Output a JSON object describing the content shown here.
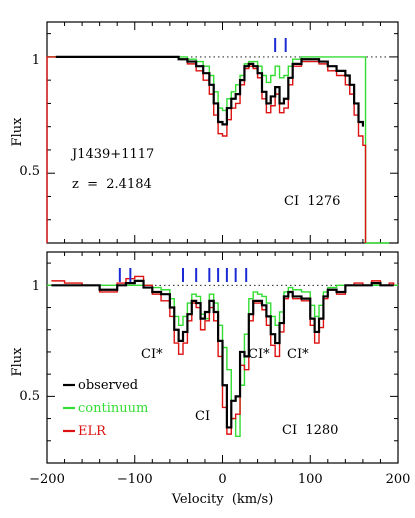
{
  "chart_data": [
    {
      "type": "line",
      "panel": "top",
      "ylabel": "Flux",
      "xlim": [
        -200,
        200
      ],
      "ylim": [
        0.2,
        1.15
      ],
      "y_ticks": [
        0.5,
        1
      ],
      "y_tick_labels": [
        "0.5",
        "1"
      ],
      "continuum_level": 1,
      "annotations": [
        "J1439+1117",
        "z  =  2.4184",
        "CI  1276"
      ],
      "component_ticks": [
        60,
        72
      ],
      "series": [
        {
          "name": "observed",
          "color": "#000000",
          "x": [
            -190,
            -170,
            -150,
            -130,
            -110,
            -90,
            -70,
            -50,
            -40,
            -30,
            -22,
            -15,
            -10,
            -5,
            0,
            5,
            10,
            15,
            20,
            25,
            30,
            35,
            40,
            45,
            50,
            55,
            60,
            65,
            70,
            75,
            80,
            90,
            100,
            110,
            120,
            130,
            140,
            145,
            150,
            155,
            160
          ],
          "y": [
            1.0,
            1.0,
            1.0,
            1.0,
            1.0,
            1.0,
            1.0,
            0.99,
            0.98,
            0.96,
            0.93,
            0.88,
            0.8,
            0.72,
            0.71,
            0.78,
            0.82,
            0.84,
            0.9,
            0.96,
            0.97,
            0.96,
            0.93,
            0.85,
            0.8,
            0.83,
            0.87,
            0.8,
            0.82,
            0.91,
            0.97,
            0.99,
            0.99,
            0.98,
            0.96,
            0.94,
            0.92,
            0.88,
            0.8,
            0.72,
            0.7
          ]
        },
        {
          "name": "continuum",
          "color": "#33dd33",
          "x": [
            -200,
            -190,
            -170,
            -150,
            -130,
            -110,
            -90,
            -70,
            -50,
            -40,
            -30,
            -22,
            -15,
            -10,
            -5,
            0,
            5,
            10,
            15,
            20,
            25,
            30,
            35,
            40,
            45,
            50,
            55,
            60,
            65,
            70,
            75,
            80,
            90,
            100,
            110,
            120,
            130,
            140,
            145,
            150,
            155,
            160,
            163,
            163,
            190
          ],
          "y": [
            1.0,
            1.0,
            1.0,
            1.0,
            1.0,
            1.0,
            1.0,
            1.0,
            1.0,
            0.99,
            0.98,
            0.96,
            0.92,
            0.85,
            0.78,
            0.77,
            0.82,
            0.85,
            0.88,
            0.92,
            0.97,
            0.98,
            0.98,
            0.96,
            0.92,
            0.89,
            0.92,
            0.96,
            0.91,
            0.92,
            0.96,
            0.99,
            1.0,
            1.0,
            1.0,
            1.0,
            1.0,
            1.0,
            1.0,
            1.0,
            1.0,
            1.0,
            1.0,
            0.2,
            0.2
          ]
        },
        {
          "name": "ELR",
          "color": "#dd1111",
          "x": [
            -200,
            -200,
            -190,
            -170,
            -150,
            -130,
            -110,
            -90,
            -70,
            -50,
            -40,
            -30,
            -22,
            -15,
            -10,
            -5,
            0,
            5,
            10,
            15,
            20,
            25,
            30,
            35,
            40,
            45,
            50,
            55,
            60,
            65,
            70,
            75,
            80,
            90,
            100,
            110,
            120,
            130,
            140,
            145,
            150,
            155,
            160,
            163
          ],
          "y": [
            0.2,
            1.0,
            1.0,
            1.0,
            1.0,
            1.0,
            1.0,
            1.0,
            1.0,
            0.99,
            0.97,
            0.94,
            0.9,
            0.84,
            0.75,
            0.67,
            0.66,
            0.73,
            0.78,
            0.8,
            0.88,
            0.95,
            0.96,
            0.95,
            0.91,
            0.82,
            0.76,
            0.79,
            0.84,
            0.76,
            0.78,
            0.88,
            0.96,
            0.98,
            0.98,
            0.97,
            0.94,
            0.92,
            0.88,
            0.84,
            0.75,
            0.66,
            0.62,
            0.2
          ]
        }
      ]
    },
    {
      "type": "line",
      "panel": "bottom",
      "xlabel": "Velocity  (km/s)",
      "ylabel": "Flux",
      "xlim": [
        -200,
        200
      ],
      "ylim": [
        0.2,
        1.15
      ],
      "x_ticks": [
        -200,
        -100,
        0,
        100,
        200
      ],
      "x_tick_labels": [
        "−200",
        "−100",
        "0",
        "100",
        "200"
      ],
      "y_ticks": [
        0.5,
        1
      ],
      "y_tick_labels": [
        "0.5",
        "1"
      ],
      "continuum_level": 1,
      "annotations": [
        "CI*",
        "CI*",
        "CI*",
        "CI",
        "CI  1280"
      ],
      "component_ticks": [
        -117,
        -105,
        -45,
        -30,
        -15,
        -5,
        5,
        15,
        27
      ],
      "legend": {
        "position": "bottom-left",
        "entries": [
          "observed",
          "continuum",
          "ELR"
        ]
      },
      "series": [
        {
          "name": "observed",
          "color": "#000000",
          "x": [
            -195,
            -180,
            -160,
            -140,
            -120,
            -110,
            -100,
            -90,
            -80,
            -70,
            -60,
            -55,
            -50,
            -45,
            -40,
            -35,
            -30,
            -25,
            -20,
            -15,
            -10,
            -5,
            0,
            5,
            10,
            15,
            20,
            25,
            30,
            35,
            40,
            45,
            50,
            55,
            60,
            65,
            70,
            75,
            80,
            90,
            100,
            105,
            110,
            115,
            120,
            130,
            140,
            150,
            160,
            170,
            180,
            190,
            195
          ],
          "y": [
            1.0,
            1.0,
            1.0,
            0.98,
            1.0,
            1.01,
            1.02,
            0.99,
            0.97,
            0.96,
            0.9,
            0.8,
            0.75,
            0.79,
            0.87,
            0.93,
            0.92,
            0.85,
            0.88,
            0.93,
            0.88,
            0.75,
            0.55,
            0.36,
            0.48,
            0.5,
            0.7,
            0.68,
            0.87,
            0.93,
            0.93,
            0.91,
            0.86,
            0.78,
            0.74,
            0.83,
            0.95,
            0.97,
            0.95,
            0.94,
            0.85,
            0.79,
            0.85,
            0.95,
            0.98,
            0.97,
            1.0,
            1.0,
            1.0,
            1.01,
            1.0,
            1.0,
            1.0
          ]
        },
        {
          "name": "continuum",
          "color": "#33dd33",
          "x": [
            -200,
            -180,
            -160,
            -140,
            -120,
            -110,
            -100,
            -90,
            -80,
            -70,
            -60,
            -55,
            -50,
            -45,
            -40,
            -35,
            -30,
            -25,
            -20,
            -15,
            -10,
            -5,
            0,
            5,
            10,
            15,
            20,
            25,
            30,
            35,
            40,
            45,
            50,
            55,
            60,
            65,
            70,
            75,
            80,
            90,
            100,
            105,
            110,
            115,
            120,
            130,
            140,
            150,
            160,
            170,
            180,
            190,
            200
          ],
          "y": [
            1.0,
            1.0,
            1.0,
            1.0,
            1.0,
            1.0,
            1.0,
            1.0,
            0.99,
            0.98,
            0.94,
            0.86,
            0.82,
            0.86,
            0.92,
            0.96,
            0.95,
            0.87,
            0.85,
            0.96,
            0.92,
            0.82,
            0.72,
            0.62,
            0.4,
            0.32,
            0.55,
            0.78,
            0.94,
            0.97,
            0.96,
            0.95,
            0.92,
            0.86,
            0.82,
            0.88,
            0.97,
            0.99,
            0.98,
            0.97,
            0.91,
            0.86,
            0.91,
            0.97,
            0.99,
            1.0,
            1.0,
            1.0,
            1.0,
            1.0,
            1.0,
            1.0,
            1.0
          ]
        },
        {
          "name": "ELR",
          "color": "#dd1111",
          "x": [
            -195,
            -180,
            -160,
            -140,
            -120,
            -110,
            -100,
            -90,
            -80,
            -70,
            -60,
            -55,
            -50,
            -45,
            -40,
            -35,
            -30,
            -25,
            -20,
            -15,
            -10,
            -5,
            0,
            5,
            10,
            15,
            20,
            25,
            30,
            35,
            40,
            45,
            50,
            55,
            60,
            65,
            70,
            75,
            80,
            90,
            100,
            105,
            110,
            115,
            120,
            130,
            140,
            150,
            160,
            170,
            180,
            190,
            195
          ],
          "y": [
            1.02,
            1.01,
            1.0,
            0.97,
            1.01,
            1.03,
            1.04,
            1.0,
            0.96,
            0.93,
            0.86,
            0.74,
            0.69,
            0.74,
            0.84,
            0.92,
            0.9,
            0.8,
            0.84,
            0.9,
            0.84,
            0.68,
            0.45,
            0.33,
            0.4,
            0.42,
            0.64,
            0.62,
            0.84,
            0.92,
            0.92,
            0.89,
            0.82,
            0.73,
            0.68,
            0.79,
            0.94,
            0.97,
            0.94,
            0.93,
            0.82,
            0.74,
            0.81,
            0.94,
            0.98,
            0.96,
            1.0,
            1.01,
            1.0,
            1.02,
            1.0,
            1.01,
            1.0
          ]
        }
      ]
    }
  ]
}
